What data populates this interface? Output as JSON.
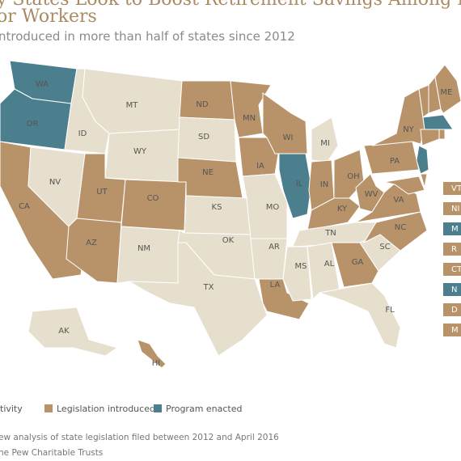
{
  "header": {
    "title_lines": [
      "y States Look to Boost Retirement Savings Among Private",
      "or Workers"
    ],
    "subtitle": "ntroduced in more than half of states since 2012"
  },
  "map": {
    "states": [
      {
        "label": "WA",
        "color": "#4b7f8d"
      },
      {
        "label": "OR",
        "color": "#4b7f8d"
      },
      {
        "label": "CA",
        "color": "#b8936a"
      },
      {
        "label": "NV",
        "color": "#e7dfcd"
      },
      {
        "label": "ID",
        "color": "#e7dfcd"
      },
      {
        "label": "MT",
        "color": "#e7dfcd"
      },
      {
        "label": "WY",
        "color": "#e7dfcd"
      },
      {
        "label": "UT",
        "color": "#b8936a"
      },
      {
        "label": "AZ",
        "color": "#b8936a"
      },
      {
        "label": "CO",
        "color": "#b8936a"
      },
      {
        "label": "NM",
        "color": "#e7dfcd"
      },
      {
        "label": "ND",
        "color": "#b8936a"
      },
      {
        "label": "SD",
        "color": "#e7dfcd"
      },
      {
        "label": "NE",
        "color": "#b8936a"
      },
      {
        "label": "KS",
        "color": "#e7dfcd"
      },
      {
        "label": "OK",
        "color": "#e7dfcd"
      },
      {
        "label": "TX",
        "color": "#e7dfcd"
      },
      {
        "label": "MN",
        "color": "#b8936a"
      },
      {
        "label": "IA",
        "color": "#b8936a"
      },
      {
        "label": "MO",
        "color": "#e7dfcd"
      },
      {
        "label": "AR",
        "color": "#e7dfcd"
      },
      {
        "label": "LA",
        "color": "#b8936a"
      },
      {
        "label": "WI",
        "color": "#b8936a"
      },
      {
        "label": "IL",
        "color": "#4b7f8d"
      },
      {
        "label": "MI",
        "color": "#e7dfcd"
      },
      {
        "label": "IN",
        "color": "#b8936a"
      },
      {
        "label": "OH",
        "color": "#b8936a"
      },
      {
        "label": "KY",
        "color": "#b8936a"
      },
      {
        "label": "TN",
        "color": "#e7dfcd"
      },
      {
        "label": "MS",
        "color": "#e7dfcd"
      },
      {
        "label": "AL",
        "color": "#e7dfcd"
      },
      {
        "label": "GA",
        "color": "#b8936a"
      },
      {
        "label": "FL",
        "color": "#e7dfcd"
      },
      {
        "label": "SC",
        "color": "#e7dfcd"
      },
      {
        "label": "NC",
        "color": "#b8936a"
      },
      {
        "label": "VA",
        "color": "#b8936a"
      },
      {
        "label": "WV",
        "color": "#b8936a"
      },
      {
        "label": "PA",
        "color": "#b8936a"
      },
      {
        "label": "NY",
        "color": "#b8936a"
      },
      {
        "label": null,
        "color": "#b8936a"
      },
      {
        "label": null,
        "color": "#b8936a"
      },
      {
        "label": "ME",
        "color": "#b8936a"
      },
      {
        "label": null,
        "color": "#4b7f8d"
      },
      {
        "label": null,
        "color": "#b8936a"
      },
      {
        "label": null,
        "color": "#b8936a"
      },
      {
        "label": null,
        "color": "#4b7f8d"
      },
      {
        "label": null,
        "color": "#b8936a"
      },
      {
        "label": null,
        "color": "#b8936a"
      },
      {
        "label": "AK",
        "color": "#e7dfcd"
      },
      {
        "label": "HI",
        "color": "#b8936a"
      }
    ],
    "side_labels": [
      {
        "label": "VT",
        "color": "#b8936a"
      },
      {
        "label": "NI",
        "color": "#b8936a"
      },
      {
        "label": "M",
        "color": "#4b7f8d"
      },
      {
        "label": "R",
        "color": "#b8936a"
      },
      {
        "label": "CT",
        "color": "#b8936a"
      },
      {
        "label": "N",
        "color": "#4b7f8d"
      },
      {
        "label": "D",
        "color": "#b8936a"
      },
      {
        "label": "M",
        "color": "#b8936a"
      }
    ]
  },
  "legend": [
    {
      "name": "tivity",
      "color": "#e7dfcd"
    },
    {
      "name": "Legislation introduced",
      "color": "#b8936a"
    },
    {
      "name": "Program enacted",
      "color": "#4b7f8d"
    }
  ],
  "notes": [
    "ew analysis of state legislation filed between 2012 and April 2016",
    "he Pew Charitable Trusts"
  ]
}
